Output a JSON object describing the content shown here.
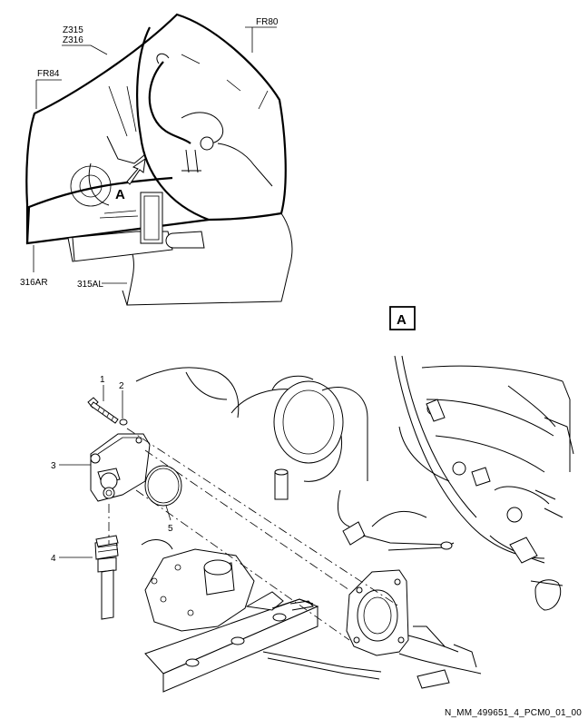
{
  "overview": {
    "labels": {
      "z315": "Z315",
      "z316": "Z316",
      "fr80": "FR80",
      "fr84": "FR84",
      "a": "A",
      "l316ar": "316AR",
      "l315al": "315AL"
    }
  },
  "detail": {
    "view_label": "A",
    "callouts": [
      "1",
      "2",
      "3",
      "4",
      "5"
    ]
  },
  "footer": {
    "reference": "N_MM_499651_4_PCM0_01_00"
  }
}
